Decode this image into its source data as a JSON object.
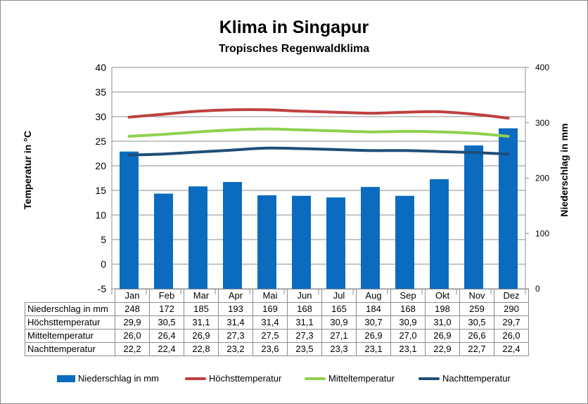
{
  "chart_data": {
    "type": "bar+line",
    "title": "Klima in Singapur",
    "subtitle": "Tropisches Regenwaldklima",
    "ylabel_left": "Temperatur in °C",
    "ylabel_right": "Niederschlag in mm",
    "y_left_ticks": [
      "40",
      "35",
      "30",
      "25",
      "20",
      "15",
      "10",
      "5",
      "0",
      "-5"
    ],
    "y_right_ticks": [
      "400",
      "300",
      "200",
      "100",
      "0"
    ],
    "ylim_left": [
      -5,
      40
    ],
    "ylim_right": [
      0,
      400
    ],
    "categories": [
      "Jan",
      "Feb",
      "Mar",
      "Apr",
      "Mai",
      "Jun",
      "Jul",
      "Aug",
      "Sep",
      "Okt",
      "Nov",
      "Dez"
    ],
    "series": [
      {
        "name": "Niederschlag in mm",
        "type": "bar",
        "axis": "right",
        "color": "#0a6bbf",
        "values": [
          248,
          172,
          185,
          193,
          169,
          168,
          165,
          184,
          168,
          198,
          259,
          290
        ],
        "labels": [
          "248",
          "172",
          "185",
          "193",
          "169",
          "168",
          "165",
          "184",
          "168",
          "198",
          "259",
          "290"
        ]
      },
      {
        "name": "Höchsttemperatur",
        "type": "line",
        "axis": "left",
        "color": "#bf4040",
        "values": [
          29.9,
          30.5,
          31.1,
          31.4,
          31.4,
          31.1,
          30.9,
          30.7,
          30.9,
          31.0,
          30.5,
          29.7
        ],
        "labels": [
          "29,9",
          "30,5",
          "31,1",
          "31,4",
          "31,4",
          "31,1",
          "30,9",
          "30,7",
          "30,9",
          "31,0",
          "30,5",
          "29,7"
        ]
      },
      {
        "name": "Mitteltemperatur",
        "type": "line",
        "axis": "left",
        "color": "#8fd14f",
        "values": [
          26.0,
          26.4,
          26.9,
          27.3,
          27.5,
          27.3,
          27.1,
          26.9,
          27.0,
          26.9,
          26.6,
          26.0
        ],
        "labels": [
          "26,0",
          "26,4",
          "26,9",
          "27,3",
          "27,5",
          "27,3",
          "27,1",
          "26,9",
          "27,0",
          "26,9",
          "26,6",
          "26,0"
        ]
      },
      {
        "name": "Nachttemperatur",
        "type": "line",
        "axis": "left",
        "color": "#1f4e79",
        "values": [
          22.2,
          22.4,
          22.8,
          23.2,
          23.6,
          23.5,
          23.3,
          23.1,
          23.1,
          22.9,
          22.7,
          22.4
        ],
        "labels": [
          "22,2",
          "22,4",
          "22,8",
          "23,2",
          "23,6",
          "23,5",
          "23,3",
          "23,1",
          "23,1",
          "22,9",
          "22,7",
          "22,4"
        ]
      }
    ],
    "grid": true,
    "legend_position": "bottom"
  }
}
